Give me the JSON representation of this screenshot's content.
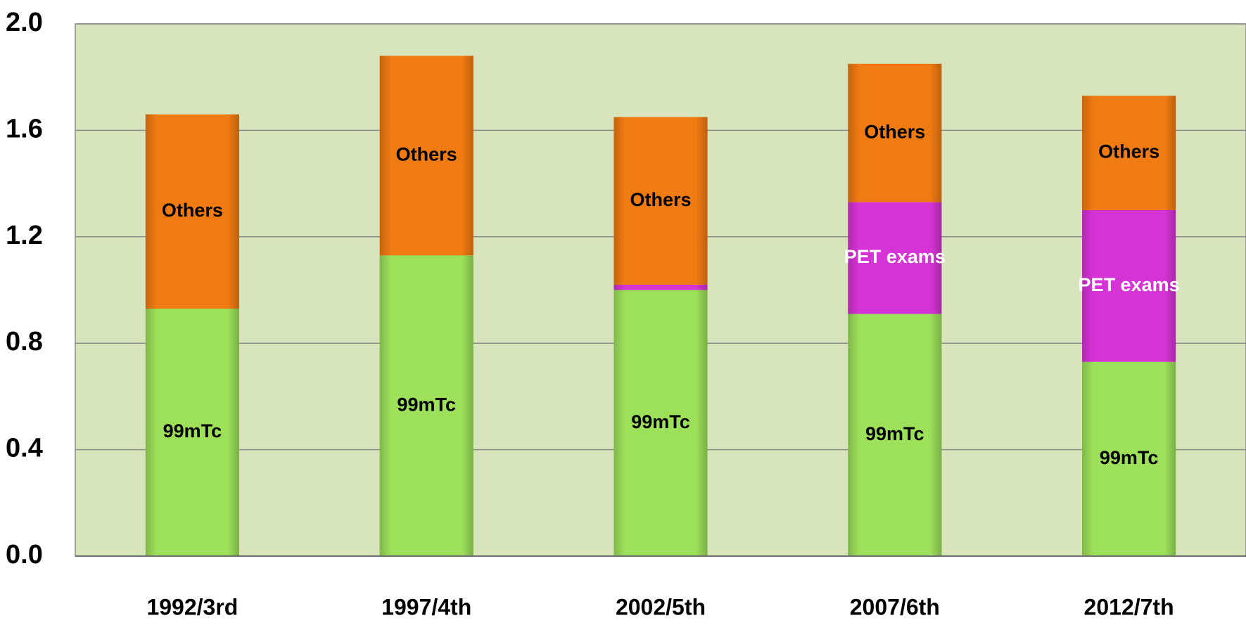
{
  "chart_data": {
    "type": "stacked_bar",
    "categories": [
      "1992/3rd",
      "1997/4th",
      "2002/5th",
      "2007/6th",
      "2012/7th"
    ],
    "series": [
      {
        "name": "99mTc",
        "color": "#9de05a",
        "label_color": "#000000",
        "values": [
          0.93,
          1.13,
          1.0,
          0.91,
          0.73
        ]
      },
      {
        "name": "PET exams",
        "color": "#d633d6",
        "label_color": "#ffffff",
        "values": [
          0,
          0,
          0.02,
          0.42,
          0.57
        ]
      },
      {
        "name": "Others",
        "color": "#f07b12",
        "label_color": "#000000",
        "values": [
          0.73,
          0.75,
          0.63,
          0.52,
          0.43
        ]
      }
    ],
    "ylim": [
      0,
      2.0
    ],
    "yticks": [
      {
        "value": 0,
        "label": "0.0"
      },
      0.4,
      0.8,
      1.2,
      1.6,
      {
        "value": 2.0,
        "label": "2.0"
      }
    ],
    "grid": true,
    "plot_background": "#d8e4bc"
  }
}
